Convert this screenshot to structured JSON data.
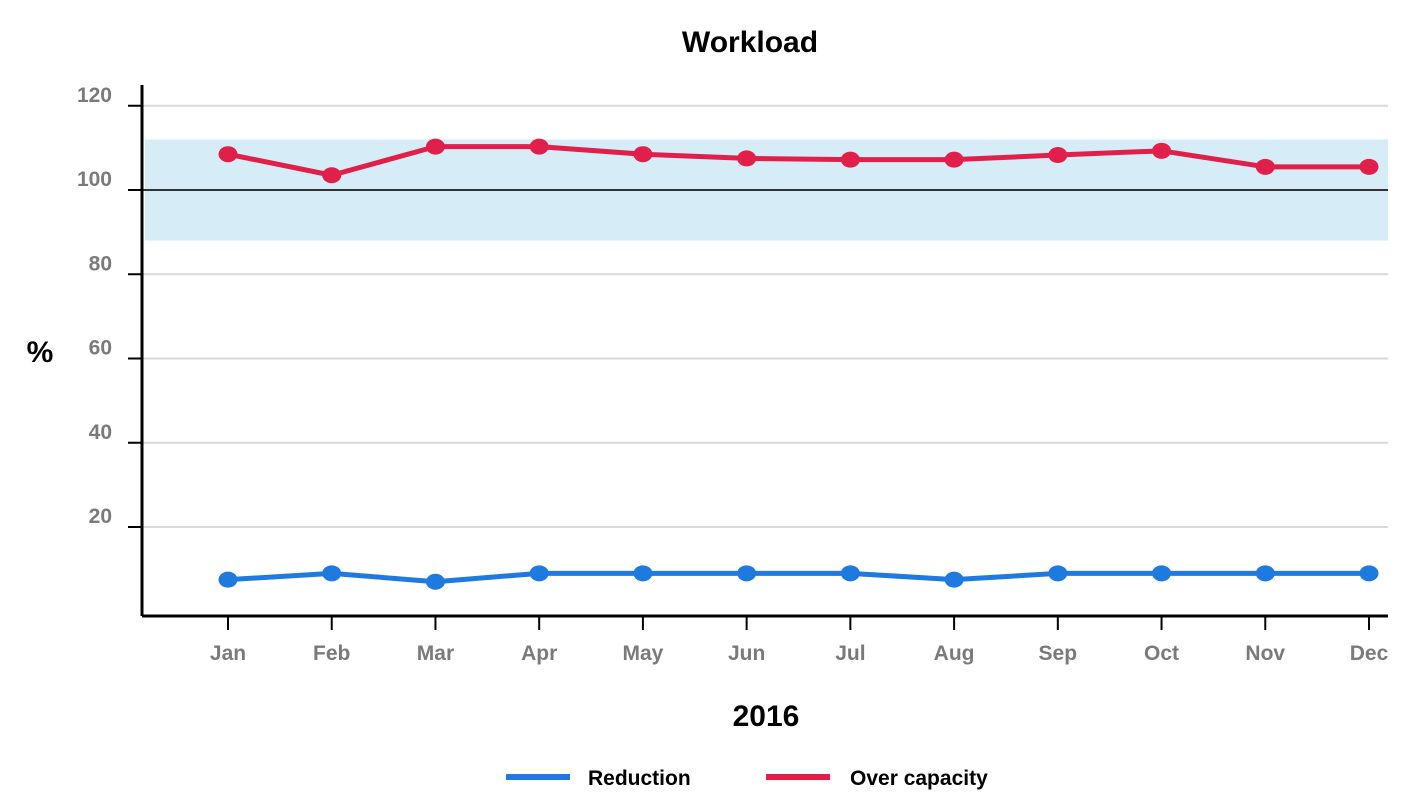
{
  "chart_data": {
    "type": "line",
    "title": "Workload",
    "xlabel": "2016",
    "ylabel": "%",
    "categories": [
      "Jan",
      "Feb",
      "Mar",
      "Apr",
      "May",
      "Jun",
      "Jul",
      "Aug",
      "Sep",
      "Oct",
      "Nov",
      "Dec"
    ],
    "yticks": [
      20,
      40,
      60,
      80,
      100,
      120
    ],
    "ylim": [
      -2,
      126
    ],
    "grid": true,
    "reference_line": 100,
    "target_band": [
      88,
      112
    ],
    "legend_position": "bottom",
    "series": [
      {
        "name": "Reduction",
        "color": "#1f7ae0",
        "values": [
          7.5,
          9,
          7,
          9,
          9,
          9,
          9,
          7.5,
          9,
          9,
          9,
          9
        ]
      },
      {
        "name": "Over capacity",
        "color": "#e0204a",
        "values": [
          108.5,
          103.5,
          110.3,
          110.3,
          108.5,
          107.5,
          107.2,
          107.2,
          108.3,
          109.3,
          105.5,
          105.5
        ]
      }
    ],
    "colors": {
      "band": "#d6edf8",
      "grid": "#d9d9d9",
      "reference": "#333333",
      "axis": "#000000"
    }
  }
}
